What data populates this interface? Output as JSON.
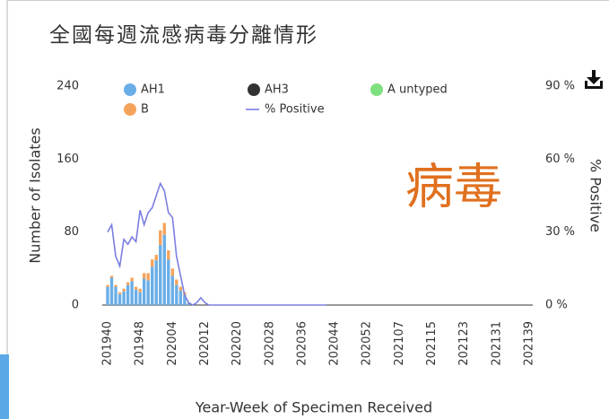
{
  "chart_data": {
    "type": "bar",
    "title": "全國每週流感病毒分離情形",
    "overlay_text": "病毒",
    "y_label": "Number of Isolates",
    "y2_label": "% Positive",
    "x_label": "Year-Week of Specimen Received",
    "stacked": true,
    "categories": [
      "201940",
      null,
      null,
      null,
      null,
      null,
      null,
      null,
      "201948",
      null,
      null,
      null,
      null,
      null,
      null,
      null,
      "202004",
      null,
      null,
      null,
      null,
      null,
      null,
      null,
      "202012",
      null,
      null,
      null,
      null,
      null,
      null,
      null,
      "202020",
      null,
      null,
      null,
      null,
      null,
      null,
      null,
      "202028",
      null,
      null,
      null,
      null,
      null,
      null,
      null,
      "202036",
      null,
      null,
      null,
      null,
      null,
      null,
      null,
      "202044",
      null,
      null,
      null,
      null,
      null,
      null,
      null,
      "202052",
      null,
      null,
      null,
      null,
      null,
      null,
      null,
      "202107",
      null,
      null,
      null,
      null,
      null,
      null,
      null,
      "202115",
      null,
      null,
      null,
      null,
      null,
      null,
      null,
      "202123",
      null,
      null,
      null,
      null,
      null,
      null,
      null,
      "202131",
      null,
      null,
      null,
      null,
      null,
      null,
      null,
      "202139"
    ],
    "series": [
      {
        "name": "AH1",
        "color": "#6aaee8",
        "values": [
          20,
          30,
          20,
          12,
          15,
          22,
          26,
          17,
          14,
          29,
          27,
          42,
          49,
          66,
          77,
          50,
          32,
          22,
          16,
          11,
          2,
          0,
          0,
          0,
          0,
          0,
          0,
          0,
          0,
          0,
          0,
          0,
          0,
          0,
          0,
          0,
          0,
          0,
          0,
          0,
          0,
          0,
          0,
          0,
          0,
          0,
          0,
          0,
          0,
          0,
          0,
          0,
          0,
          0,
          0,
          0,
          0,
          0,
          0,
          0,
          0,
          0,
          0,
          0,
          0,
          0,
          0,
          0,
          0,
          0,
          0,
          0,
          0,
          0,
          0,
          0,
          0,
          0,
          0,
          0,
          0,
          0,
          0,
          0,
          0,
          0,
          0,
          0,
          0,
          0,
          0,
          0,
          0,
          0,
          0,
          0,
          0,
          0,
          0,
          0,
          0,
          0,
          0,
          0,
          0
        ]
      },
      {
        "name": "B",
        "color": "#f5a35c",
        "values": [
          2,
          2,
          2,
          2,
          3,
          3,
          4,
          3,
          4,
          6,
          8,
          8,
          6,
          16,
          13,
          10,
          8,
          6,
          4,
          3,
          1,
          0,
          0,
          0,
          0,
          0,
          0,
          0,
          0,
          0,
          0,
          0,
          0,
          0,
          0,
          0,
          0,
          0,
          0,
          0,
          0,
          0,
          0,
          0,
          0,
          0,
          0,
          0,
          0,
          0,
          0,
          0,
          0,
          0,
          0,
          0,
          0,
          0,
          0,
          0,
          0,
          0,
          0,
          0,
          0,
          0,
          0,
          0,
          0,
          0,
          0,
          0,
          0,
          0,
          0,
          0,
          0,
          0,
          0,
          0,
          0,
          0,
          0,
          0,
          0,
          0,
          0,
          0,
          0,
          0,
          0,
          0,
          0,
          0,
          0,
          0,
          0,
          0,
          0,
          0,
          0,
          0,
          0,
          0,
          0
        ]
      },
      {
        "name": "AH3",
        "color": "#333333",
        "values": [
          0,
          0,
          0,
          0,
          0,
          0,
          0,
          0,
          0,
          0,
          0,
          0,
          0,
          0,
          0,
          0,
          0,
          0,
          0,
          0,
          0,
          0,
          0,
          0,
          0,
          0,
          0,
          0,
          0,
          0,
          0,
          0,
          0,
          0,
          0,
          0,
          0,
          0,
          0,
          0,
          0,
          0,
          0,
          0,
          0,
          0,
          0,
          0,
          0,
          0,
          0,
          0,
          0,
          0,
          0,
          0,
          0,
          0,
          0,
          0,
          0,
          0,
          0,
          0,
          0,
          0,
          0,
          0,
          0,
          0,
          0,
          0,
          0,
          0,
          0,
          0,
          0,
          0,
          0,
          0,
          0,
          0,
          0,
          0,
          0,
          0,
          0,
          0,
          0,
          0,
          0,
          0,
          0,
          0,
          0,
          0,
          0,
          0,
          0,
          0,
          0,
          0,
          0,
          0,
          0
        ]
      },
      {
        "name": "A untyped",
        "color": "#7ee07e",
        "values": [
          0,
          0,
          0,
          0,
          0,
          0,
          0,
          0,
          0,
          0,
          0,
          0,
          0,
          0,
          0,
          0,
          0,
          0,
          0,
          0,
          0,
          0,
          0,
          0,
          0,
          0,
          0,
          0,
          0,
          0,
          0,
          0,
          0,
          0,
          0,
          0,
          0,
          0,
          0,
          0,
          0,
          0,
          0,
          0,
          0,
          0,
          0,
          0,
          0,
          0,
          0,
          0,
          0,
          0,
          0,
          0,
          0,
          0,
          0,
          0,
          0,
          0,
          0,
          0,
          0,
          0,
          0,
          0,
          0,
          0,
          0,
          0,
          0,
          0,
          0,
          0,
          0,
          0,
          0,
          0,
          0,
          0,
          0,
          0,
          0,
          0,
          0,
          0,
          0,
          0,
          0,
          0,
          0,
          0,
          0,
          0,
          0,
          0,
          0,
          0,
          0,
          0,
          0,
          0,
          0
        ]
      },
      {
        "name": "% Positive",
        "color": "#7b7fe0",
        "type": "line",
        "axis": "y2",
        "values": [
          30,
          33,
          20,
          16,
          27,
          25,
          28,
          26,
          39,
          33,
          38,
          40,
          45,
          50,
          47,
          38,
          36,
          20,
          12,
          4,
          1,
          0,
          1,
          3,
          1,
          0,
          0,
          0,
          0,
          0,
          0,
          0,
          0,
          0,
          0,
          0,
          0,
          0,
          0,
          0,
          0,
          0,
          0,
          0,
          0,
          0,
          0,
          0,
          0,
          0,
          0,
          0,
          0,
          0,
          0,
          null,
          null,
          null,
          null,
          null,
          null,
          null,
          null,
          null,
          null,
          null,
          null,
          null,
          null,
          null,
          null,
          null,
          null,
          null,
          null,
          null,
          null,
          null,
          null,
          null,
          null,
          null,
          null,
          null,
          null,
          null,
          null,
          null,
          null,
          null,
          null,
          null,
          null,
          null,
          null,
          null,
          null,
          null,
          null,
          null,
          null,
          null,
          null,
          null,
          null
        ]
      }
    ],
    "ylim": [
      0,
      240
    ],
    "yticks": [
      0,
      80,
      160,
      240
    ],
    "y2lim": [
      0,
      90
    ],
    "y2ticks": [
      {
        "value": 0,
        "label": "0 %"
      },
      {
        "value": 30,
        "label": "30 %"
      },
      {
        "value": 60,
        "label": "60 %"
      },
      {
        "value": 90,
        "label": "90 %"
      }
    ],
    "grid": false
  }
}
